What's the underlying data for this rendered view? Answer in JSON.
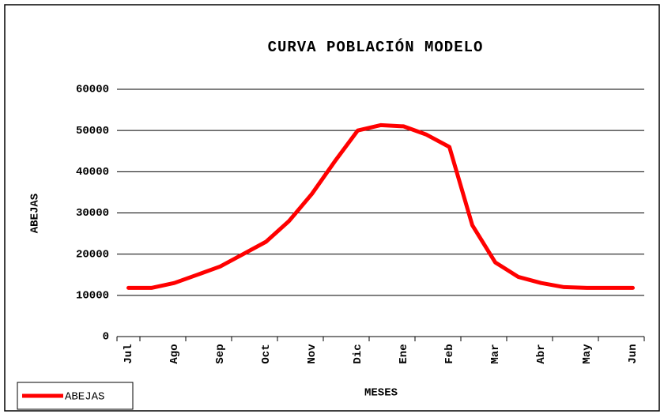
{
  "chart_data": {
    "type": "line",
    "title": "CURVA POBLACIÓN MODELO",
    "x_label": "MESES",
    "y_label": "ABEJAS",
    "categories": [
      "Jul",
      null,
      "Ago",
      null,
      "Sep",
      null,
      "Oct",
      null,
      "Nov",
      null,
      "Dic",
      null,
      "Ene",
      null,
      "Feb",
      null,
      "Mar",
      null,
      "Abr",
      null,
      "May",
      null,
      "Jun"
    ],
    "series": [
      {
        "name": "ABEJAS",
        "color": "#ff0000",
        "values": [
          11800,
          11800,
          13000,
          15000,
          17000,
          20000,
          23000,
          28000,
          34600,
          42500,
          50000,
          51300,
          51000,
          49000,
          46000,
          27000,
          18000,
          14500,
          13000,
          12000,
          11800,
          11800,
          11800
        ]
      }
    ],
    "ylim": [
      0,
      60000
    ],
    "yticks": [
      0,
      10000,
      20000,
      30000,
      40000,
      50000,
      60000
    ],
    "grid": true,
    "legend": "bottom-left"
  }
}
